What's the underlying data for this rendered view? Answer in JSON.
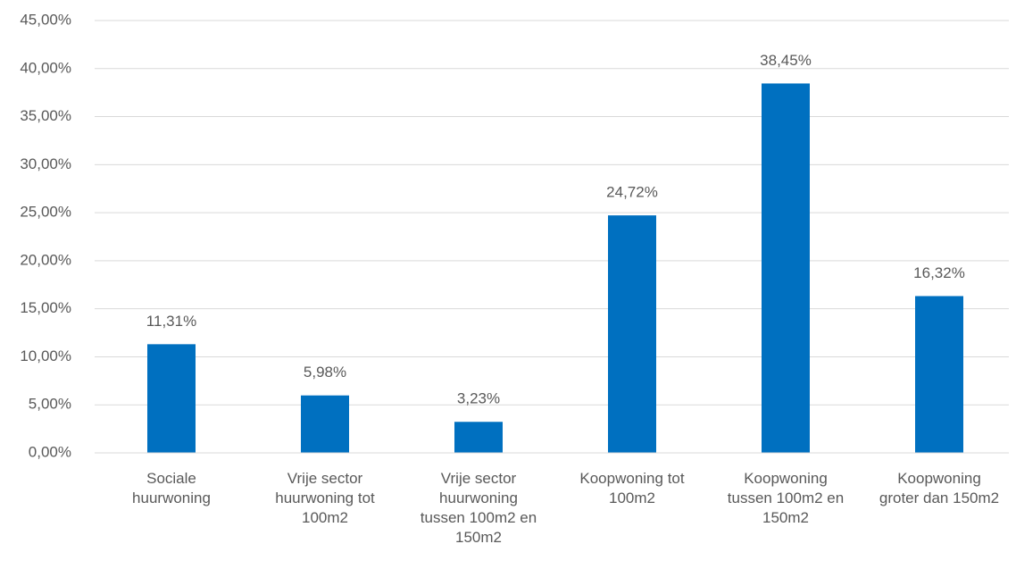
{
  "chart_data": {
    "type": "bar",
    "categories": [
      "Sociale huurwoning",
      "Vrije sector huurwoning tot 100m2",
      "Vrije sector huurwoning tussen 100m2 en 150m2",
      "Koopwoning tot 100m2",
      "Koopwoning tussen 100m2 en 150m2",
      "Koopwoning groter dan 150m2"
    ],
    "values": [
      11.31,
      5.98,
      3.23,
      24.72,
      38.45,
      16.32
    ],
    "value_labels": [
      "11,31%",
      "5,98%",
      "3,23%",
      "24,72%",
      "38,45%",
      "16,32%"
    ],
    "color": "#0070c0",
    "ylim": [
      0,
      45
    ],
    "yticks": [
      {
        "value": 0,
        "label": "0,00%"
      },
      {
        "value": 5,
        "label": "5,00%"
      },
      {
        "value": 10,
        "label": "10,00%"
      },
      {
        "value": 15,
        "label": "15,00%"
      },
      {
        "value": 20,
        "label": "20,00%"
      },
      {
        "value": 25,
        "label": "25,00%"
      },
      {
        "value": 30,
        "label": "30,00%"
      },
      {
        "value": 35,
        "label": "35,00%"
      },
      {
        "value": 40,
        "label": "40,00%"
      },
      {
        "value": 45,
        "label": "45,00%"
      }
    ],
    "grid": true
  }
}
